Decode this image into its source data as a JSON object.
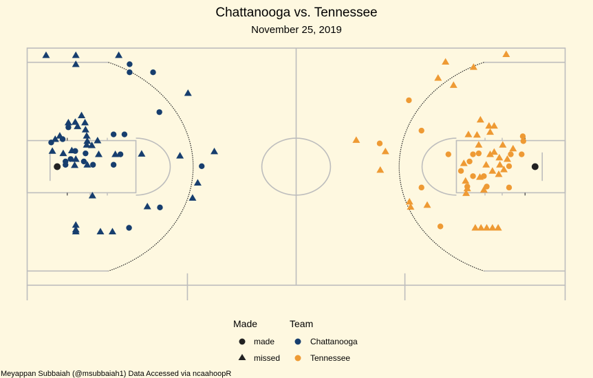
{
  "chart_data": {
    "type": "scatter",
    "title": "Chattanooga vs. Tennessee",
    "subtitle": "November 25, 2019",
    "caption": "Meyappan Subbaiah (@msubbaiah1) Data Accessed via ncaahoopR",
    "xlim": [
      0,
      94
    ],
    "ylim": [
      0,
      50
    ],
    "legend": {
      "position": "bottom",
      "made_title": "Made",
      "team_title": "Team",
      "made_items": [
        {
          "label": "made",
          "shape": "circle"
        },
        {
          "label": "missed",
          "shape": "triangle"
        }
      ],
      "team_items": [
        {
          "label": "Chattanooga",
          "color": "#173e6e"
        },
        {
          "label": "Tennessee",
          "color": "#ee9a34"
        }
      ]
    },
    "made_color": "#222222",
    "series": [
      {
        "name": "Chattanooga",
        "color": "#173e6e",
        "points": [
          {
            "x": 3.3,
            "y": 48.5,
            "made": false
          },
          {
            "x": 8.5,
            "y": 48.5,
            "made": false
          },
          {
            "x": 16.0,
            "y": 48.5,
            "made": false
          },
          {
            "x": 8.5,
            "y": 46.6,
            "made": false
          },
          {
            "x": 17.9,
            "y": 46.6,
            "made": true
          },
          {
            "x": 17.9,
            "y": 44.9,
            "made": true
          },
          {
            "x": 22.0,
            "y": 44.9,
            "made": true
          },
          {
            "x": 28.1,
            "y": 40.5,
            "made": false
          },
          {
            "x": 23.1,
            "y": 36.5,
            "made": true
          },
          {
            "x": 9.5,
            "y": 35.8,
            "made": false
          },
          {
            "x": 7.2,
            "y": 34.3,
            "made": false
          },
          {
            "x": 8.4,
            "y": 34.4,
            "made": false
          },
          {
            "x": 10.1,
            "y": 34.3,
            "made": false
          },
          {
            "x": 7.2,
            "y": 33.3,
            "made": true
          },
          {
            "x": 8.8,
            "y": 33.5,
            "made": false
          },
          {
            "x": 10.2,
            "y": 32.8,
            "made": false
          },
          {
            "x": 10.4,
            "y": 31.5,
            "made": false
          },
          {
            "x": 15.1,
            "y": 31.8,
            "made": true
          },
          {
            "x": 17.0,
            "y": 31.8,
            "made": true
          },
          {
            "x": 5.7,
            "y": 31.5,
            "made": false
          },
          {
            "x": 4.9,
            "y": 30.8,
            "made": false
          },
          {
            "x": 6.2,
            "y": 30.8,
            "made": true
          },
          {
            "x": 4.2,
            "y": 30.1,
            "made": true
          },
          {
            "x": 10.5,
            "y": 30.4,
            "made": false
          },
          {
            "x": 12.3,
            "y": 30.5,
            "made": false
          },
          {
            "x": 10.4,
            "y": 29.6,
            "made": false
          },
          {
            "x": 11.3,
            "y": 29.5,
            "made": false
          },
          {
            "x": 7.8,
            "y": 28.4,
            "made": false
          },
          {
            "x": 4.4,
            "y": 28.3,
            "made": false
          },
          {
            "x": 6.3,
            "y": 27.8,
            "made": false
          },
          {
            "x": 8.4,
            "y": 28.3,
            "made": true
          },
          {
            "x": 10.2,
            "y": 27.8,
            "made": true
          },
          {
            "x": 12.5,
            "y": 27.6,
            "made": false
          },
          {
            "x": 15.4,
            "y": 27.6,
            "made": false
          },
          {
            "x": 16.3,
            "y": 27.6,
            "made": true
          },
          {
            "x": 20.0,
            "y": 27.7,
            "made": false
          },
          {
            "x": 32.7,
            "y": 28.2,
            "made": false
          },
          {
            "x": 26.7,
            "y": 27.3,
            "made": false
          },
          {
            "x": 7.6,
            "y": 26.6,
            "made": true
          },
          {
            "x": 8.5,
            "y": 26.6,
            "made": false
          },
          {
            "x": 6.7,
            "y": 26.1,
            "made": true
          },
          {
            "x": 9.9,
            "y": 26.1,
            "made": true
          },
          {
            "x": 6.7,
            "y": 25.4,
            "made": true
          },
          {
            "x": 8.3,
            "y": 25.3,
            "made": false
          },
          {
            "x": 10.5,
            "y": 25.4,
            "made": false
          },
          {
            "x": 11.5,
            "y": 25.4,
            "made": true
          },
          {
            "x": 15.1,
            "y": 25.4,
            "made": true
          },
          {
            "x": 30.5,
            "y": 25.1,
            "made": true
          },
          {
            "x": 29.8,
            "y": 21.6,
            "made": false
          },
          {
            "x": 11.4,
            "y": 18.9,
            "made": false
          },
          {
            "x": 28.9,
            "y": 18.4,
            "made": false
          },
          {
            "x": 21.0,
            "y": 16.6,
            "made": false
          },
          {
            "x": 23.2,
            "y": 16.4,
            "made": true
          },
          {
            "x": 8.5,
            "y": 12.7,
            "made": false
          },
          {
            "x": 8.5,
            "y": 11.7,
            "made": false
          },
          {
            "x": 17.8,
            "y": 12.1,
            "made": true
          },
          {
            "x": 12.8,
            "y": 11.3,
            "made": false
          },
          {
            "x": 14.9,
            "y": 11.3,
            "made": false
          },
          {
            "x": 8.5,
            "y": 11.3,
            "made": false
          }
        ]
      },
      {
        "name": "Tennessee",
        "color": "#ee9a34",
        "points": [
          {
            "x": 83.7,
            "y": 48.7,
            "made": false
          },
          {
            "x": 73.1,
            "y": 47.1,
            "made": false
          },
          {
            "x": 78.0,
            "y": 46.0,
            "made": false
          },
          {
            "x": 71.8,
            "y": 43.7,
            "made": false
          },
          {
            "x": 74.5,
            "y": 42.2,
            "made": false
          },
          {
            "x": 66.7,
            "y": 39.0,
            "made": true
          },
          {
            "x": 79.2,
            "y": 34.9,
            "made": false
          },
          {
            "x": 80.7,
            "y": 33.6,
            "made": false
          },
          {
            "x": 81.6,
            "y": 33.6,
            "made": false
          },
          {
            "x": 80.9,
            "y": 32.3,
            "made": false
          },
          {
            "x": 68.9,
            "y": 32.6,
            "made": true
          },
          {
            "x": 77.1,
            "y": 31.8,
            "made": false
          },
          {
            "x": 78.6,
            "y": 31.7,
            "made": false
          },
          {
            "x": 86.6,
            "y": 31.4,
            "made": true
          },
          {
            "x": 86.7,
            "y": 30.4,
            "made": true
          },
          {
            "x": 57.5,
            "y": 30.6,
            "made": false
          },
          {
            "x": 61.6,
            "y": 29.9,
            "made": true
          },
          {
            "x": 78.9,
            "y": 29.6,
            "made": false
          },
          {
            "x": 83.1,
            "y": 29.6,
            "made": false
          },
          {
            "x": 84.9,
            "y": 28.8,
            "made": false
          },
          {
            "x": 81.6,
            "y": 28.1,
            "made": false
          },
          {
            "x": 73.6,
            "y": 27.6,
            "made": true
          },
          {
            "x": 77.9,
            "y": 27.6,
            "made": true
          },
          {
            "x": 78.9,
            "y": 27.8,
            "made": true
          },
          {
            "x": 80.9,
            "y": 27.6,
            "made": false
          },
          {
            "x": 84.5,
            "y": 27.6,
            "made": true
          },
          {
            "x": 86.4,
            "y": 27.6,
            "made": true
          },
          {
            "x": 62.6,
            "y": 28.2,
            "made": false
          },
          {
            "x": 82.5,
            "y": 26.9,
            "made": false
          },
          {
            "x": 83.9,
            "y": 26.6,
            "made": false
          },
          {
            "x": 77.3,
            "y": 26.1,
            "made": true
          },
          {
            "x": 76.3,
            "y": 25.7,
            "made": false
          },
          {
            "x": 82.6,
            "y": 25.4,
            "made": false
          },
          {
            "x": 80.2,
            "y": 25.4,
            "made": false
          },
          {
            "x": 84.2,
            "y": 25.1,
            "made": true
          },
          {
            "x": 83.3,
            "y": 24.4,
            "made": false
          },
          {
            "x": 61.7,
            "y": 24.3,
            "made": false
          },
          {
            "x": 75.8,
            "y": 24.1,
            "made": true
          },
          {
            "x": 81.3,
            "y": 24.1,
            "made": false
          },
          {
            "x": 82.4,
            "y": 23.4,
            "made": false
          },
          {
            "x": 77.9,
            "y": 23.0,
            "made": true
          },
          {
            "x": 79.8,
            "y": 23.0,
            "made": true
          },
          {
            "x": 79.1,
            "y": 22.8,
            "made": false
          },
          {
            "x": 76.6,
            "y": 22.0,
            "made": false
          },
          {
            "x": 76.9,
            "y": 20.8,
            "made": true
          },
          {
            "x": 80.3,
            "y": 20.8,
            "made": true
          },
          {
            "x": 68.9,
            "y": 20.6,
            "made": true
          },
          {
            "x": 76.9,
            "y": 20.4,
            "made": false
          },
          {
            "x": 79.8,
            "y": 20.1,
            "made": false
          },
          {
            "x": 84.2,
            "y": 20.6,
            "made": true
          },
          {
            "x": 76.7,
            "y": 19.4,
            "made": false
          },
          {
            "x": 66.8,
            "y": 17.6,
            "made": false
          },
          {
            "x": 67.0,
            "y": 16.5,
            "made": false
          },
          {
            "x": 69.9,
            "y": 16.9,
            "made": false
          },
          {
            "x": 72.2,
            "y": 12.4,
            "made": true
          },
          {
            "x": 78.3,
            "y": 12.1,
            "made": false
          },
          {
            "x": 79.3,
            "y": 12.1,
            "made": false
          },
          {
            "x": 80.3,
            "y": 12.1,
            "made": false
          },
          {
            "x": 81.3,
            "y": 12.1,
            "made": false
          },
          {
            "x": 82.3,
            "y": 12.1,
            "made": false
          }
        ]
      }
    ]
  }
}
